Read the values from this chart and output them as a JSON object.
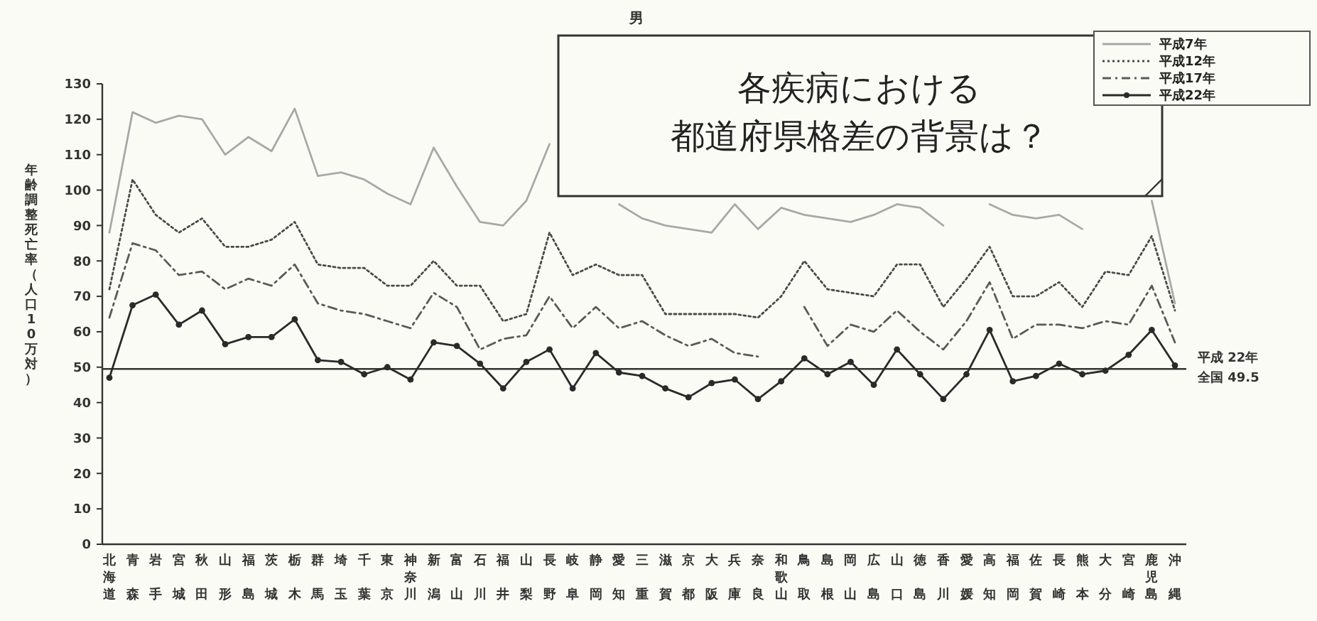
{
  "chart_data": {
    "type": "line",
    "title": "男",
    "ylabel": "年齢調整死亡率（人口10万対）",
    "categories": [
      "北海道",
      "青森",
      "岩手",
      "宮城",
      "秋田",
      "山形",
      "福島",
      "茨城",
      "栃木",
      "群馬",
      "埼玉",
      "千葉",
      "東京",
      "神奈川",
      "新潟",
      "富山",
      "石川",
      "福井",
      "山梨",
      "長野",
      "岐阜",
      "静岡",
      "愛知",
      "三重",
      "滋賀",
      "京都",
      "大阪",
      "兵庫",
      "奈良",
      "和歌山",
      "鳥取",
      "島根",
      "岡山",
      "広島",
      "山口",
      "徳島",
      "香川",
      "愛媛",
      "高知",
      "福岡",
      "佐賀",
      "長崎",
      "熊本",
      "大分",
      "宮崎",
      "鹿児島",
      "沖縄"
    ],
    "series": [
      {
        "name": "平成7年",
        "color": "#a8a8a8",
        "line_style": "solid",
        "marker": "none",
        "values": [
          88,
          122,
          119,
          121,
          120,
          110,
          115,
          111,
          123,
          104,
          105,
          103,
          99,
          96,
          112,
          101,
          91,
          90,
          97,
          113,
          null,
          null,
          96,
          92,
          90,
          89,
          88,
          96,
          89,
          95,
          93,
          92,
          91,
          93,
          96,
          95,
          90,
          null,
          96,
          93,
          92,
          93,
          89,
          null,
          null,
          97,
          68
        ]
      },
      {
        "name": "平成12年",
        "color": "#4a4a4a",
        "line_style": "dotted",
        "marker": "none",
        "values": [
          72,
          103,
          93,
          88,
          92,
          84,
          84,
          86,
          91,
          79,
          78,
          78,
          73,
          73,
          80,
          73,
          73,
          63,
          65,
          88,
          76,
          79,
          76,
          76,
          65,
          65,
          65,
          65,
          64,
          70,
          80,
          72,
          71,
          70,
          79,
          79,
          67,
          75,
          84,
          70,
          70,
          74,
          67,
          77,
          76,
          87,
          66
        ]
      },
      {
        "name": "平成17年",
        "color": "#5a5a5a",
        "line_style": "dashed",
        "marker": "none",
        "values": [
          64,
          85,
          83,
          76,
          77,
          72,
          75,
          73,
          79,
          68,
          66,
          65,
          63,
          61,
          71,
          67,
          55,
          58,
          59,
          70,
          61,
          67,
          61,
          63,
          59,
          56,
          58,
          54,
          53,
          null,
          67,
          56,
          62,
          60,
          66,
          60,
          55,
          63,
          74,
          58,
          62,
          62,
          61,
          63,
          62,
          73,
          57
        ]
      },
      {
        "name": "平成22年",
        "color": "#2a2a2a",
        "line_style": "solid",
        "marker": "circle",
        "values": [
          47,
          67.5,
          70.5,
          62,
          66,
          56.5,
          58.5,
          58.5,
          63.5,
          52,
          51.5,
          48,
          50,
          46.5,
          57,
          56,
          51,
          44,
          51.5,
          55,
          44,
          54,
          48.5,
          47.5,
          44,
          41.5,
          45.5,
          46.5,
          41,
          46,
          52.5,
          48,
          51.5,
          45,
          55,
          48,
          41,
          48,
          60.5,
          46,
          47.5,
          51,
          48,
          49,
          53.5,
          60.5,
          50.5
        ]
      }
    ],
    "ylim": [
      0,
      130
    ],
    "yticks": [
      0,
      10,
      20,
      30,
      40,
      50,
      60,
      70,
      80,
      90,
      100,
      110,
      120,
      130
    ],
    "grid": false,
    "legend": "top right",
    "ref_lines": [
      {
        "axis": "y",
        "value": 49.5,
        "label": "全国 49.5",
        "color": "#333333",
        "line_style": "solid"
      }
    ],
    "annotations": [
      "各疾病における",
      "都道府県格差の背景は？",
      "平成 22年"
    ]
  }
}
